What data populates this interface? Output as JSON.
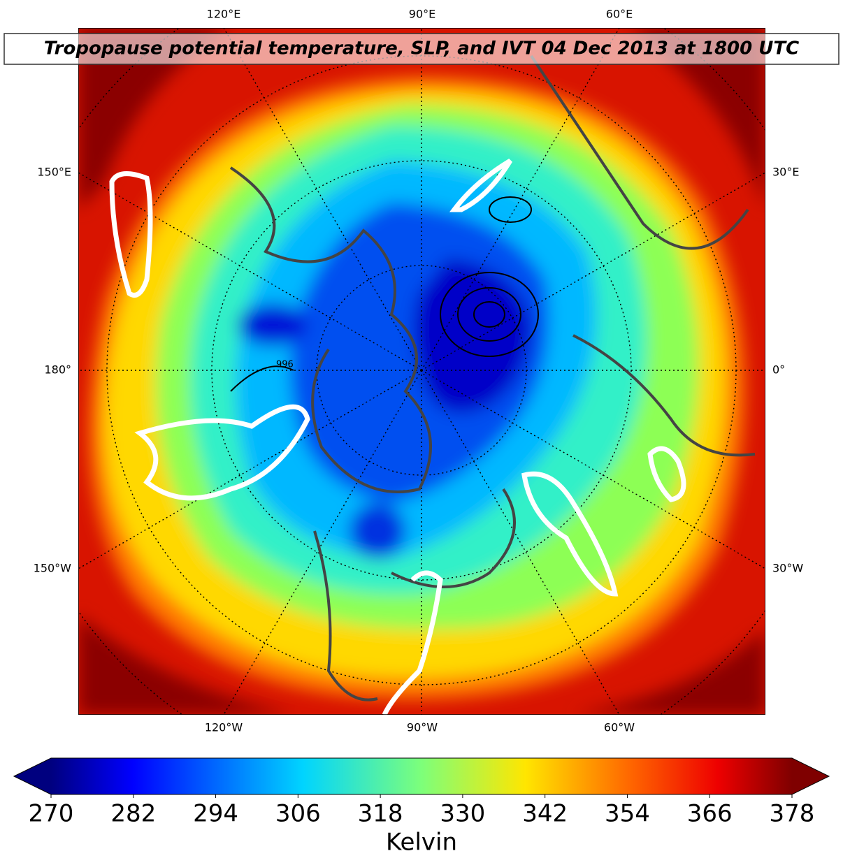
{
  "title": "Tropopause potential temperature, SLP, and IVT 04 Dec 2013 at 1800 UTC",
  "map": {
    "top_labels": [
      "120°E",
      "90°E",
      "60°E"
    ],
    "bottom_labels": [
      "120°W",
      "90°W",
      "60°W"
    ],
    "left_labels": [
      "150°E",
      "180°",
      "150°W"
    ],
    "right_labels": [
      "30°E",
      "0°",
      "30°W"
    ],
    "contour_labels": [
      "996"
    ]
  },
  "colorbar": {
    "label": "Kelvin",
    "colormap": "jet",
    "extend": "both",
    "lim": [
      270,
      378
    ],
    "ticks": [
      270,
      282,
      294,
      306,
      318,
      330,
      342,
      354,
      366,
      378
    ]
  }
}
